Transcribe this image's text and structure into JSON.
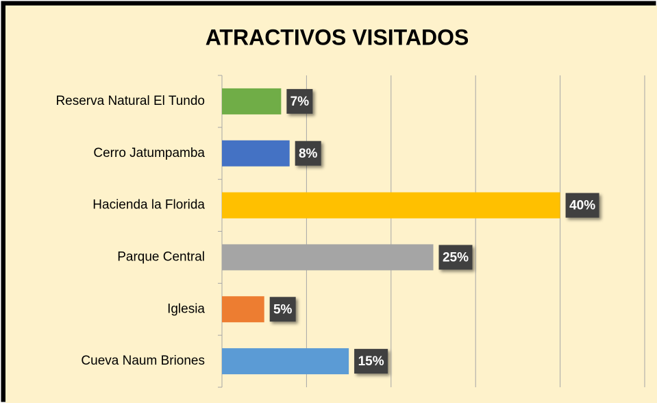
{
  "chart_data": {
    "type": "barh",
    "title": "ATRACTIVOS VISITADOS",
    "categories": [
      "Reserva Natural El Tundo",
      "Cerro Jatumpamba",
      "Hacienda la Florida",
      "Parque Central",
      "Iglesia",
      "Cueva Naum Briones"
    ],
    "values": [
      7,
      8,
      40,
      25,
      5,
      15
    ],
    "value_labels": [
      "7%",
      "8%",
      "40%",
      "25%",
      "5%",
      "15%"
    ],
    "colors": [
      "#70ad47",
      "#4472c4",
      "#ffc000",
      "#a5a5a5",
      "#ed7d31",
      "#5b9bd5"
    ],
    "xlim": [
      0,
      50
    ],
    "xticks": [
      0,
      10,
      20,
      30,
      40,
      50
    ],
    "grid": true
  }
}
